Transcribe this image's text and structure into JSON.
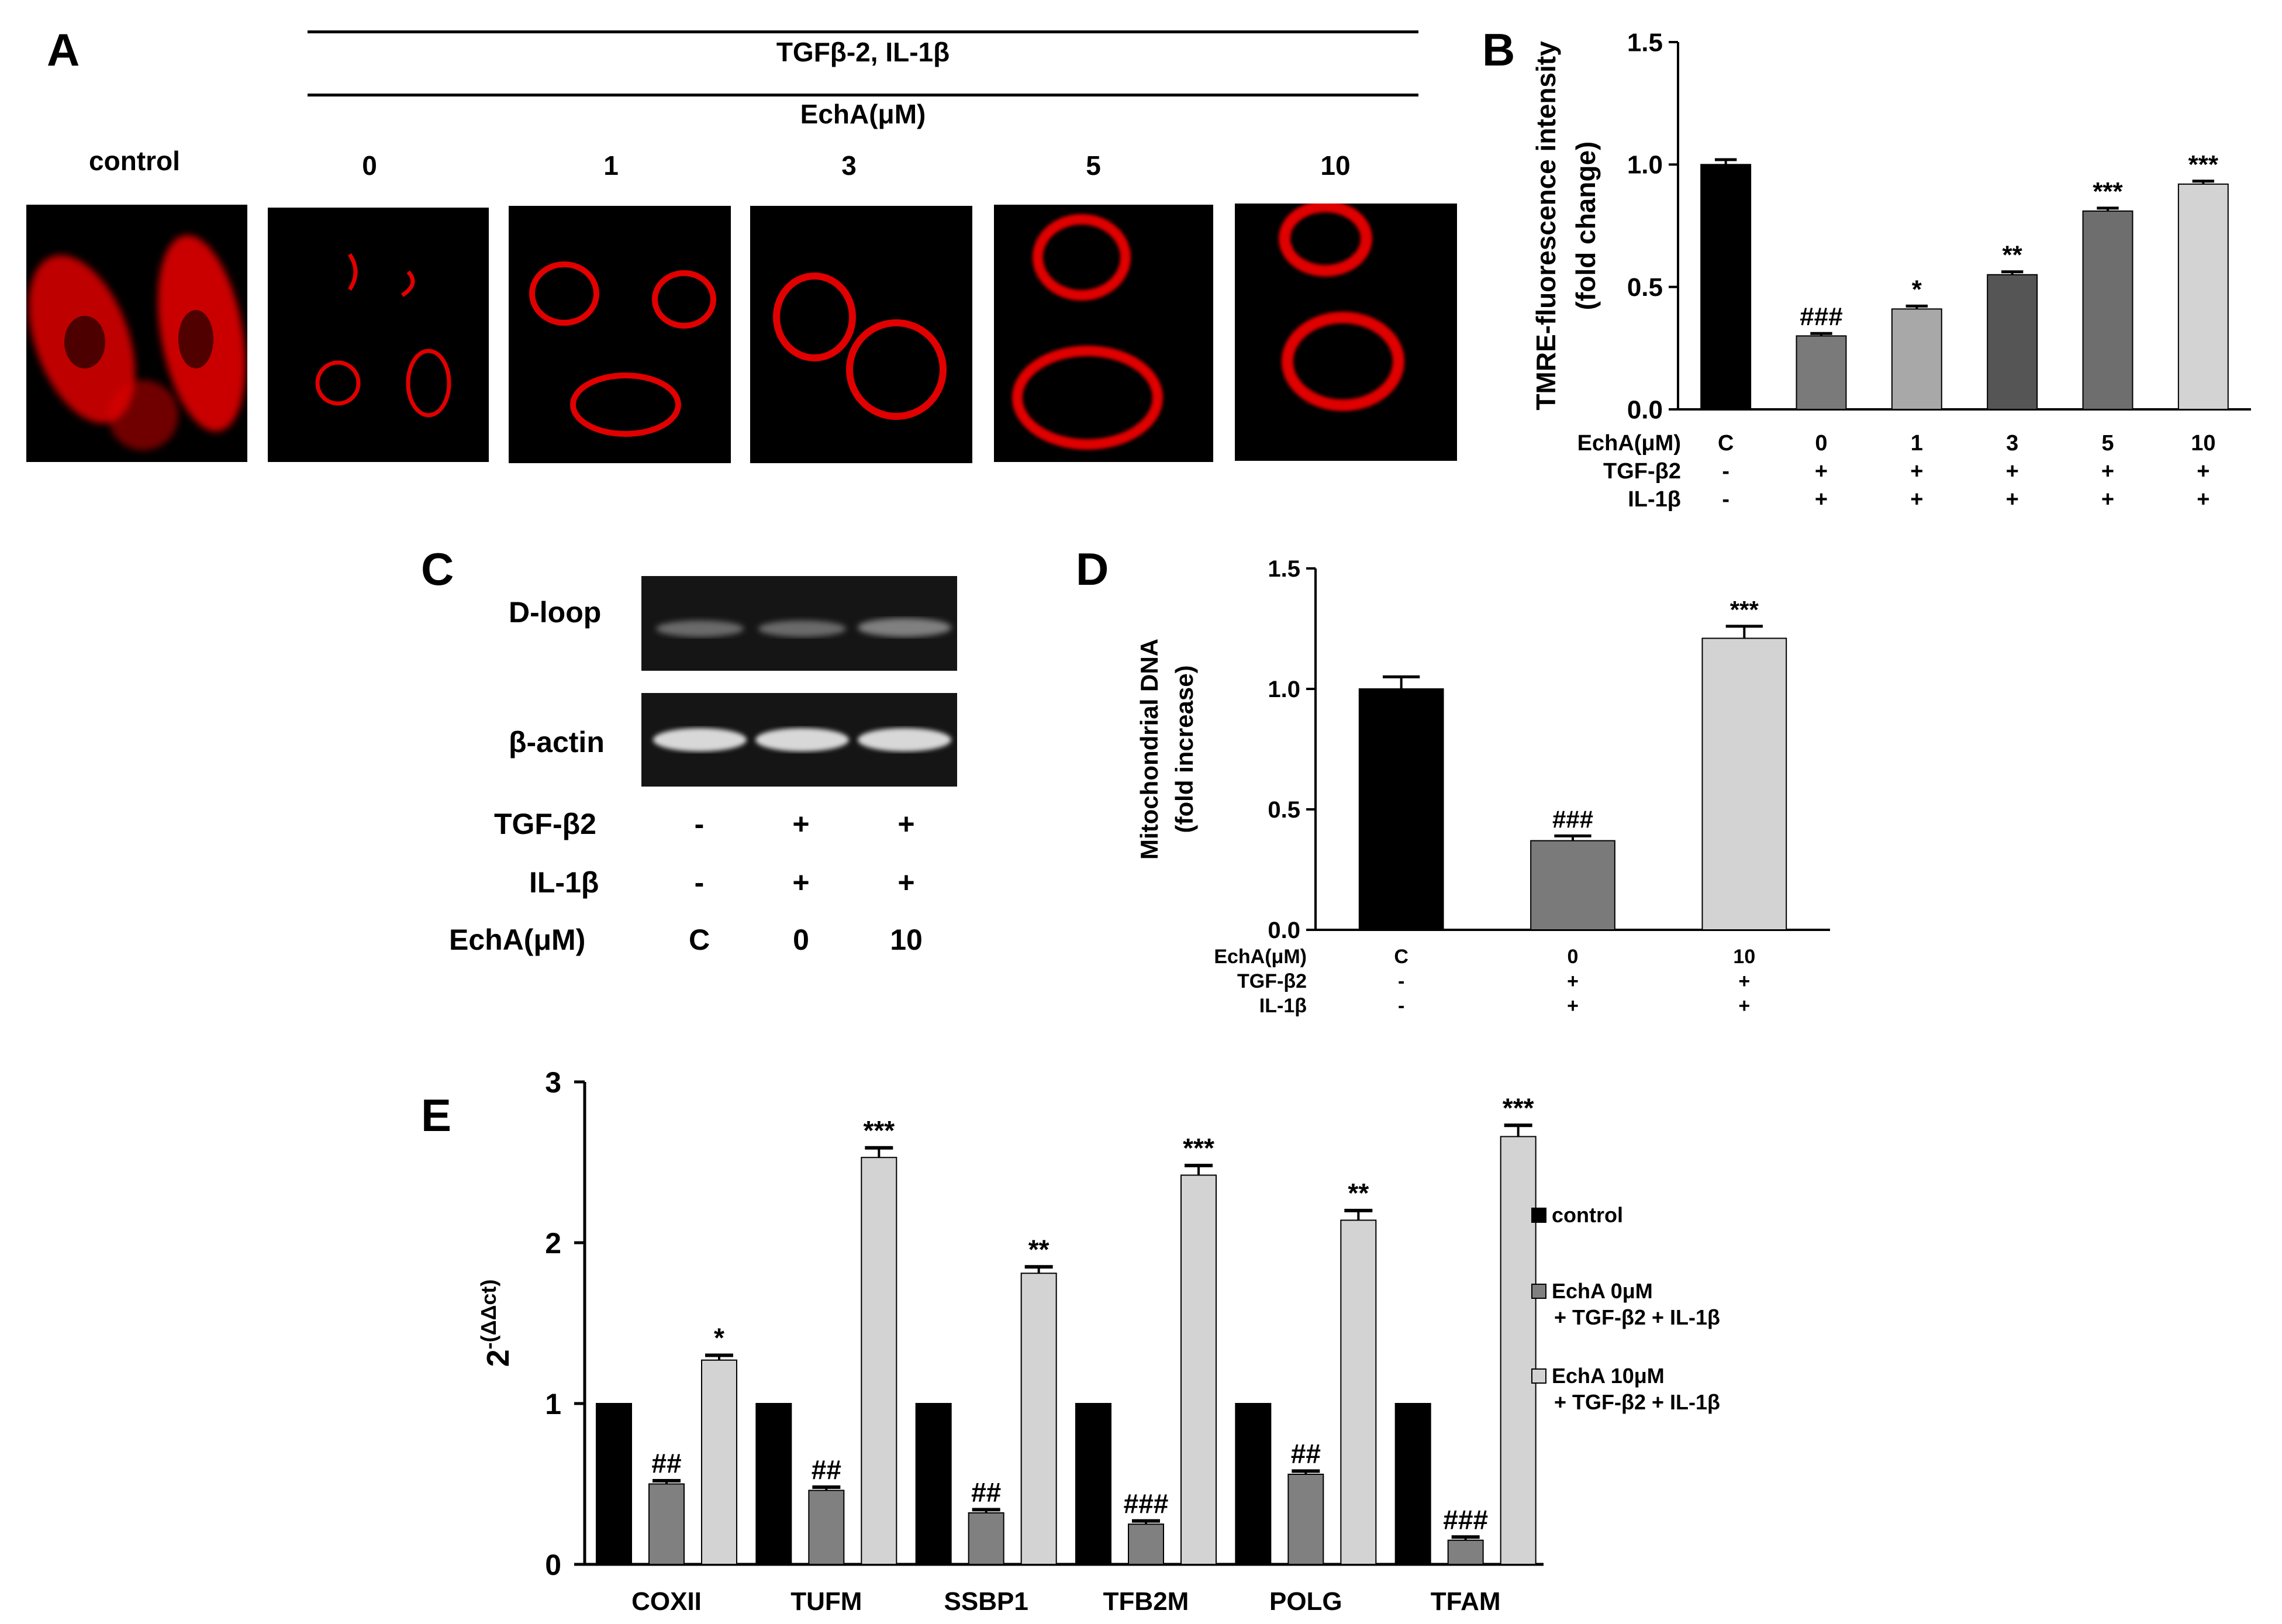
{
  "panel_labels": {
    "a": "A",
    "b": "B",
    "c": "C",
    "d": "D",
    "e": "E"
  },
  "panel_a": {
    "treatment_header": "TGFβ-2, IL-1β",
    "dose_header": "EchA(μM)",
    "control_label": "control",
    "doses": [
      "0",
      "1",
      "3",
      "5",
      "10"
    ],
    "image_color": "#e00000"
  },
  "chart_data": [
    {
      "panel": "B",
      "type": "bar",
      "categories": [
        "C",
        "0",
        "1",
        "3",
        "5",
        "10"
      ],
      "values": [
        1.0,
        0.3,
        0.41,
        0.55,
        0.81,
        0.92
      ],
      "errors": [
        0.02,
        0.01,
        0.012,
        0.012,
        0.012,
        0.012
      ],
      "annotations": [
        "",
        "###",
        "*",
        "**",
        "***",
        "***"
      ],
      "bar_colors": [
        "#000000",
        "#7a7a7a",
        "#a8a8a8",
        "#555555",
        "#6e6e6e",
        "#d3d3d3"
      ],
      "ylabel": "TMRE-fluorescence intensity (fold change)",
      "ylabel_lines": [
        "TMRE-fluorescence intensity",
        "(fold change)"
      ],
      "ylim": [
        0,
        1.5
      ],
      "yticks": [
        "0.0",
        "0.5",
        "1.0",
        "1.5"
      ],
      "rows": [
        {
          "label": "EchA(μM)",
          "values": [
            "C",
            "0",
            "1",
            "3",
            "5",
            "10"
          ]
        },
        {
          "label": "TGF-β2",
          "values": [
            "-",
            "+",
            "+",
            "+",
            "+",
            "+"
          ]
        },
        {
          "label": "IL-1β",
          "values": [
            "-",
            "+",
            "+",
            "+",
            "+",
            "+"
          ]
        }
      ]
    },
    {
      "panel": "D",
      "type": "bar",
      "categories": [
        "C",
        "0",
        "10"
      ],
      "values": [
        1.0,
        0.37,
        1.21
      ],
      "errors": [
        0.05,
        0.02,
        0.05
      ],
      "annotations": [
        "",
        "###",
        "***"
      ],
      "bar_colors": [
        "#000000",
        "#7a7a7a",
        "#d3d3d3"
      ],
      "ylabel": "Mitochondrial DNA (fold increase)",
      "ylabel_lines": [
        "Mitochondrial DNA",
        "(fold increase)"
      ],
      "ylim": [
        0,
        1.5
      ],
      "yticks": [
        "0.0",
        "0.5",
        "1.0",
        "1.5"
      ],
      "rows": [
        {
          "label": "EchA(μM)",
          "values": [
            "C",
            "0",
            "10"
          ]
        },
        {
          "label": "TGF-β2",
          "values": [
            "-",
            "+",
            "+"
          ]
        },
        {
          "label": "IL-1β",
          "values": [
            "-",
            "+",
            "+"
          ]
        }
      ]
    },
    {
      "panel": "E",
      "type": "bar",
      "categories": [
        "COXII",
        "TUFM",
        "SSBP1",
        "TFB2M",
        "POLG",
        "TFAM"
      ],
      "series": [
        {
          "name": "control",
          "values": [
            1,
            1,
            1,
            1,
            1,
            1
          ],
          "errors": [
            0,
            0,
            0,
            0,
            0,
            0
          ],
          "annotations": [
            "",
            "",
            "",
            "",
            "",
            ""
          ],
          "color": "#000000"
        },
        {
          "name": "EchA 0μM + TGF-β2 + IL-1β",
          "values": [
            0.5,
            0.46,
            0.32,
            0.25,
            0.56,
            0.15
          ],
          "errors": [
            0.02,
            0.02,
            0.02,
            0.02,
            0.02,
            0.02
          ],
          "annotations": [
            "##",
            "##",
            "##",
            "###",
            "##",
            "###"
          ],
          "color": "#808080"
        },
        {
          "name": "EchA 10μM + TGF-β2 + IL-1β",
          "values": [
            1.27,
            2.53,
            1.81,
            2.42,
            2.14,
            2.66
          ],
          "errors": [
            0.03,
            0.06,
            0.04,
            0.06,
            0.06,
            0.07
          ],
          "annotations": [
            "*",
            "***",
            "**",
            "***",
            "**",
            "***"
          ],
          "color": "#d3d3d3"
        }
      ],
      "legend_lines": [
        [
          "control"
        ],
        [
          "EchA 0μM",
          "+ TGF-β2 + IL-1β"
        ],
        [
          "EchA 10μM",
          "+ TGF-β2 + IL-1β"
        ]
      ],
      "ylabel": "2-(ΔΔct)",
      "ylabel_base": "2",
      "ylabel_sup": "-(ΔΔct)",
      "ylim": [
        0,
        3
      ],
      "yticks": [
        "0",
        "1",
        "2",
        "3"
      ]
    }
  ],
  "panel_c": {
    "band_labels": [
      "D-loop",
      "β-actin"
    ],
    "condition_rows": [
      {
        "label": "TGF-β2",
        "values": [
          "-",
          "+",
          "+"
        ]
      },
      {
        "label": "IL-1β",
        "values": [
          "-",
          "+",
          "+"
        ]
      },
      {
        "label": "EchA(μM)",
        "values": [
          "C",
          "0",
          "10"
        ]
      }
    ]
  }
}
